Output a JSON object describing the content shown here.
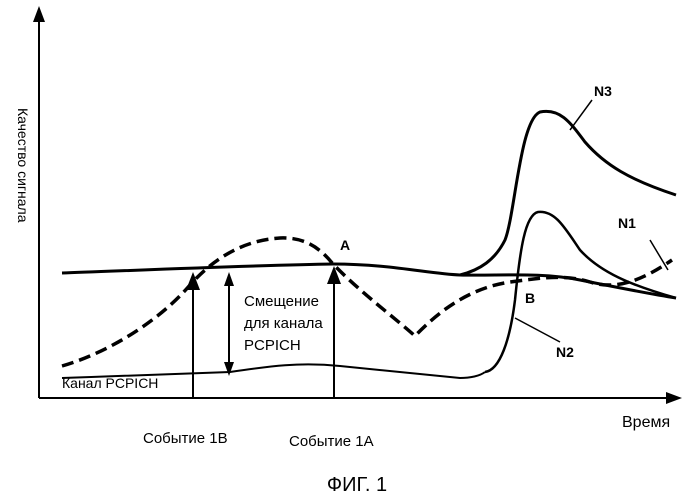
{
  "labels": {
    "y_axis": "Качество сигнала",
    "x_axis": "Время",
    "curve_n1": "N1",
    "curve_n2": "N2",
    "curve_n3": "N3",
    "point_a": "A",
    "point_b": "B",
    "offset_line1": "Смещение",
    "offset_line2": "для канала",
    "offset_line3": "PCPICH",
    "channel": "Канал PCPICH",
    "event_1b": "Событие 1B",
    "event_1a": "Событие 1A",
    "figure": "ФИГ. 1"
  }
}
